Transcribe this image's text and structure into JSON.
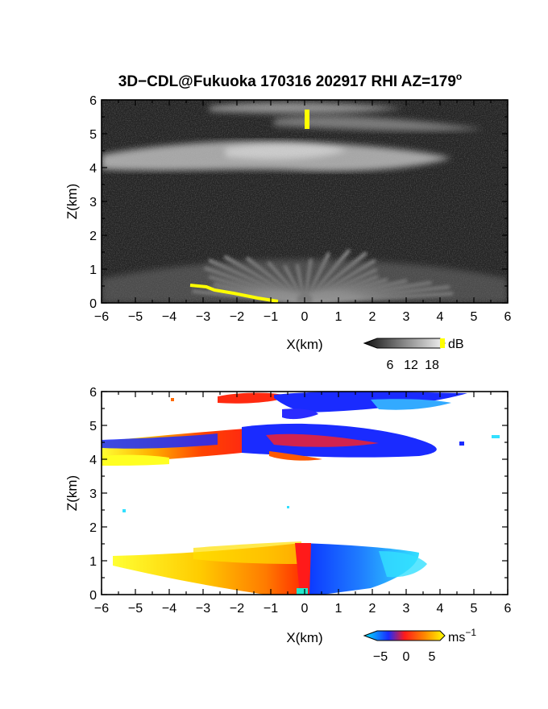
{
  "title_main": "3D−CDL@Fukuoka 170316 202917 RHI AZ=179",
  "title_deg": "o",
  "chart_data": [
    {
      "type": "heatmap",
      "name": "backscatter",
      "xlabel": "X(km)",
      "ylabel": "Z(km)",
      "xlim": [
        -6,
        6
      ],
      "ylim": [
        0,
        6
      ],
      "xticks": [
        "−6",
        "−5",
        "−4",
        "−3",
        "−2",
        "−1",
        "0",
        "1",
        "2",
        "3",
        "4",
        "5",
        "6"
      ],
      "yticks": [
        "0",
        "1",
        "2",
        "3",
        "4",
        "5",
        "6"
      ],
      "colorbar": {
        "unit": "dB",
        "ticks": [
          "6",
          "12",
          "18"
        ],
        "colormap": "grayscale"
      },
      "grid": false
    },
    {
      "type": "heatmap",
      "name": "doppler_velocity",
      "xlabel": "X(km)",
      "ylabel": "Z(km)",
      "xlim": [
        -6,
        6
      ],
      "ylim": [
        0,
        6
      ],
      "xticks": [
        "−6",
        "−5",
        "−4",
        "−3",
        "−2",
        "−1",
        "0",
        "1",
        "2",
        "3",
        "4",
        "5",
        "6"
      ],
      "yticks": [
        "0",
        "1",
        "2",
        "3",
        "4",
        "5",
        "6"
      ],
      "colorbar": {
        "unit": "ms",
        "unit_exp": "−1",
        "ticks": [
          "−5",
          "0",
          "5"
        ],
        "colormap": "cyan-blue-red-yellow"
      },
      "grid": false
    }
  ]
}
